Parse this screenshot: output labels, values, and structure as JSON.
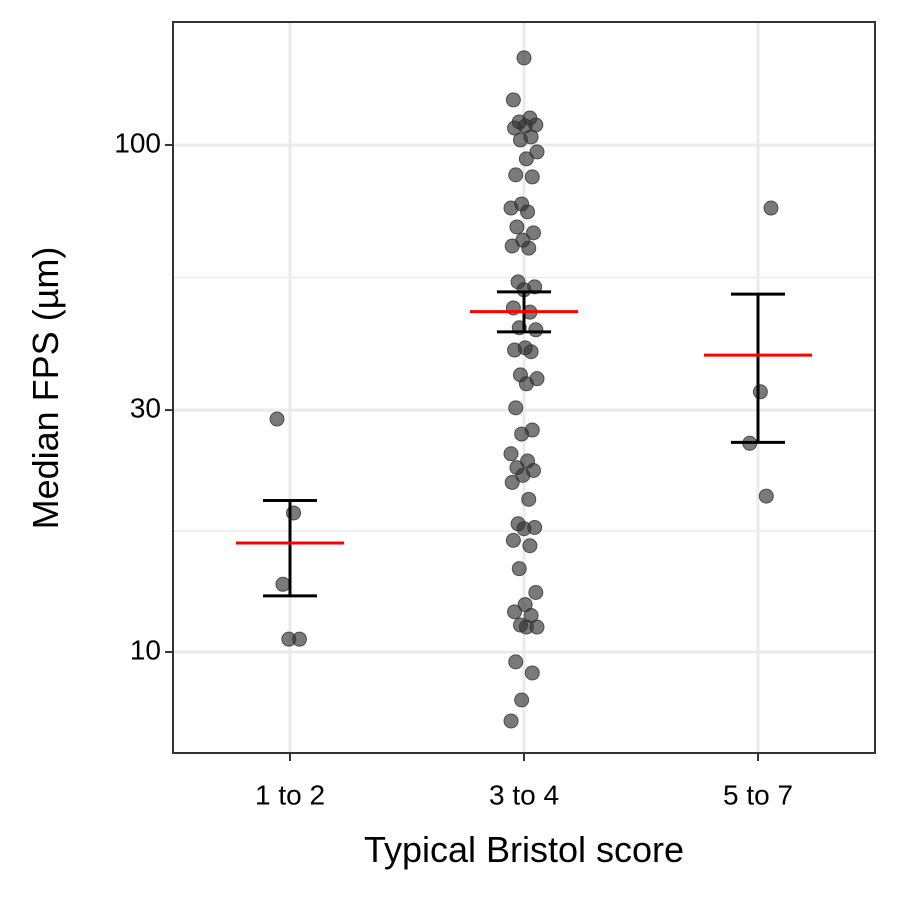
{
  "chart_data": {
    "type": "jitter",
    "x_label": "Typical Bristol score",
    "y_label": "Median FPS (µm)",
    "categories": [
      "1 to 2",
      "3 to 4",
      "5 to 7"
    ],
    "points": [
      [
        28.8,
        18.8,
        13.6,
        10.6,
        10.6
      ],
      [
        148.5,
        122.7,
        113.0,
        111.0,
        109.5,
        109.0,
        108.0,
        103.7,
        102.3,
        96.9,
        93.9,
        87.3,
        86.5,
        76.5,
        75.1,
        73.8,
        68.9,
        67.1,
        64.9,
        63.2,
        62.6,
        53.7,
        52.5,
        51.8,
        47.7,
        46.8,
        43.6,
        43.2,
        39.8,
        39.4,
        39.1,
        35.2,
        34.6,
        33.8,
        30.3,
        27.4,
        26.9,
        24.6,
        23.8,
        23.1,
        22.8,
        22.3,
        21.6,
        20.0,
        17.9,
        17.6,
        17.5,
        16.6,
        16.2,
        14.6,
        13.1,
        12.4,
        12.0,
        11.8,
        11.3,
        11.2,
        11.2,
        9.56,
        9.09,
        8.04,
        7.31
      ],
      [
        75.1,
        32.6,
        25.8,
        20.3
      ]
    ],
    "mean": [
      16.4,
      46.9,
      38.5
    ],
    "upper": [
      19.9,
      51.3,
      50.8
    ],
    "lower": [
      12.9,
      42.8,
      25.9
    ],
    "point_color": "#333333",
    "mean_color": "#ff0000",
    "error_color": "#000000",
    "log_y": true,
    "ylim": [
      6.32,
      174.8
    ],
    "yticks": [
      10,
      30,
      100
    ],
    "minor_yticks": [
      17.32,
      54.77
    ],
    "grid": true
  }
}
